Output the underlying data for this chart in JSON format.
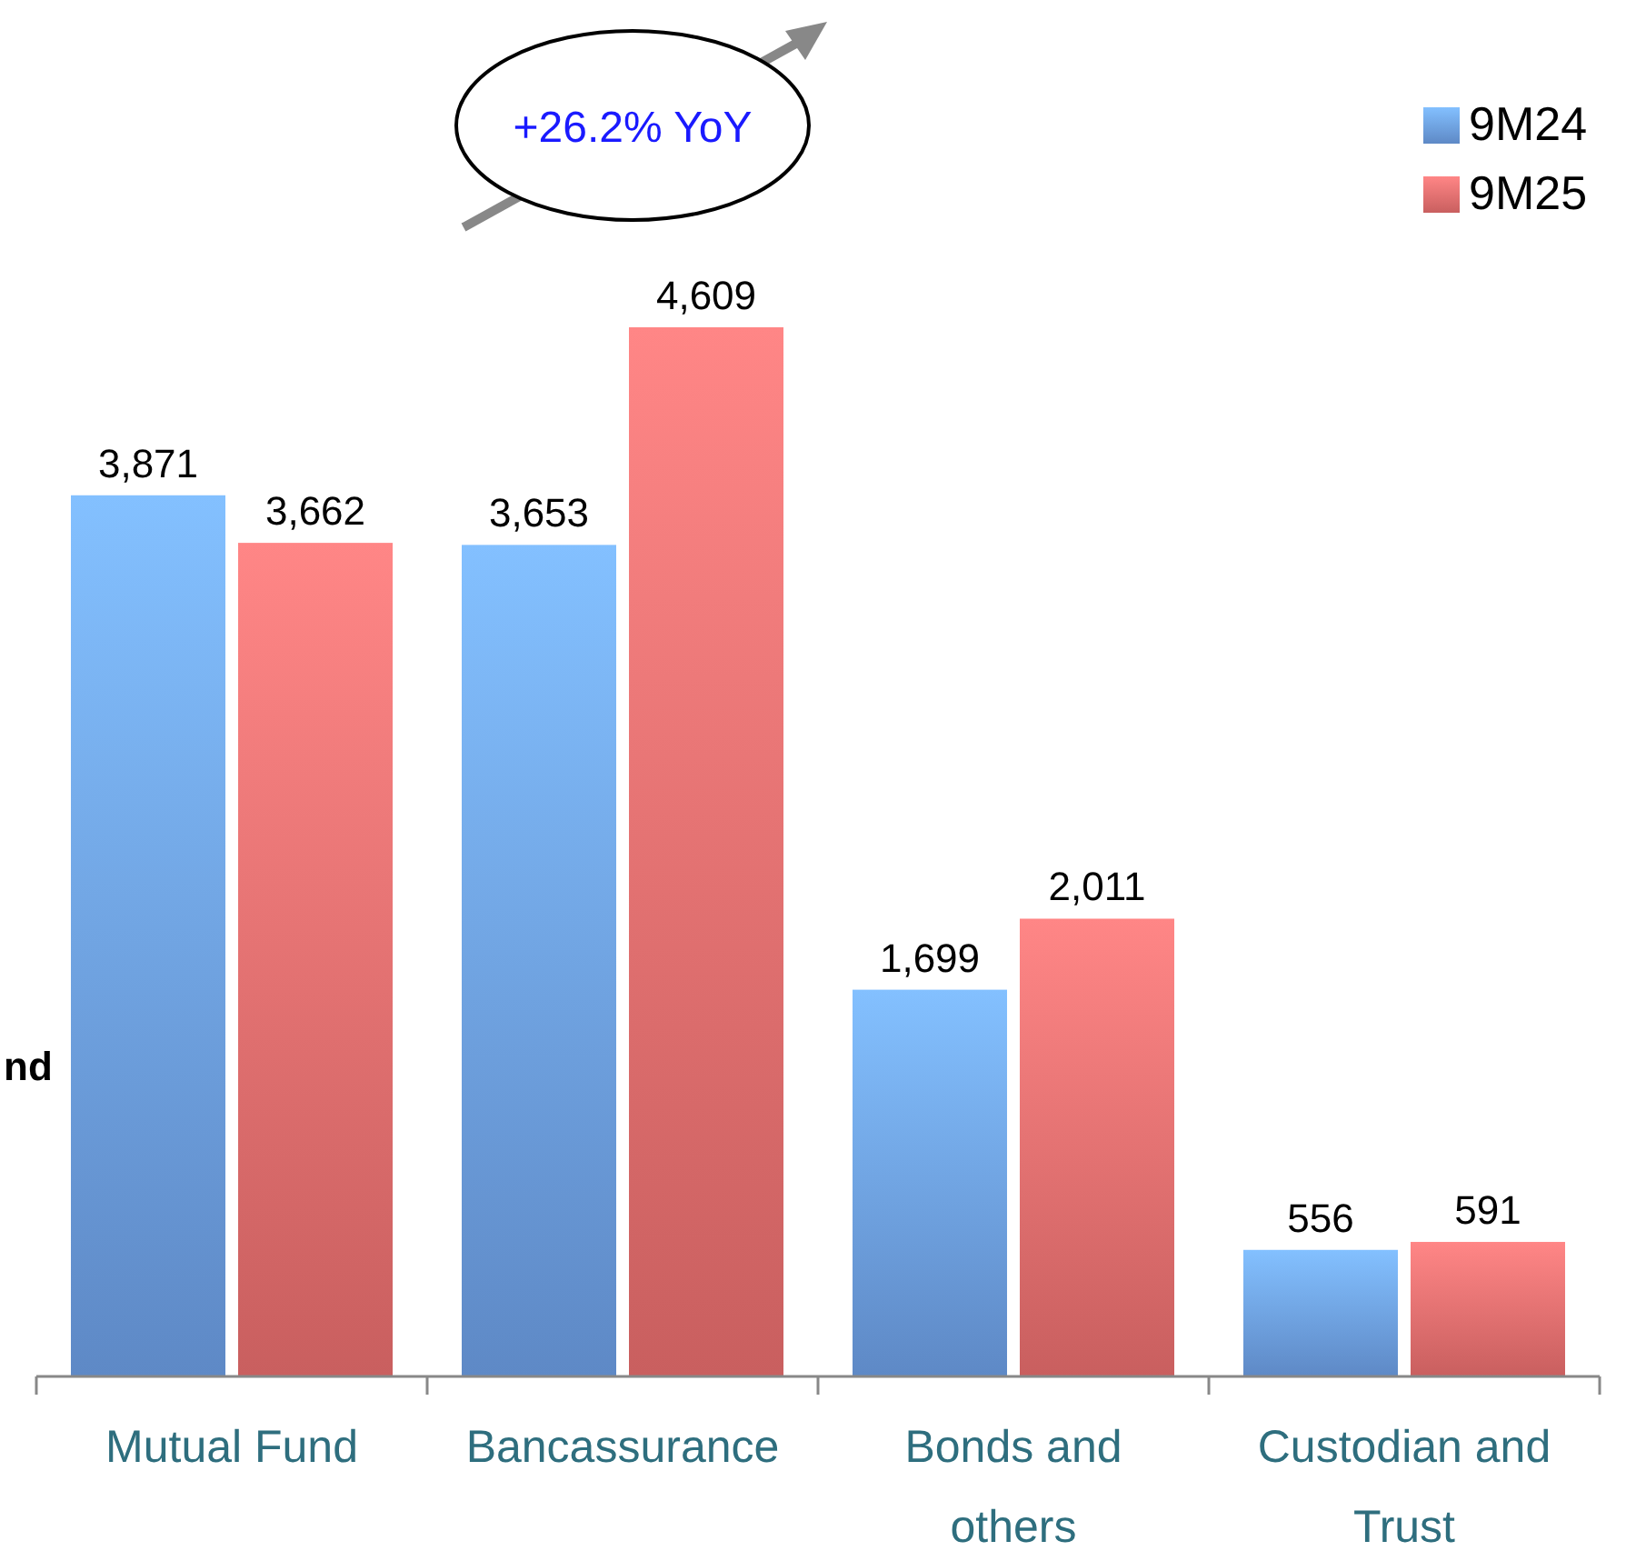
{
  "chart_data": {
    "type": "bar",
    "categories": [
      "Mutual Fund",
      "Bancassurance",
      "Bonds and others",
      "Custodian and Trust"
    ],
    "series": [
      {
        "name": "9M24",
        "color": "#6a9be0",
        "values": [
          3871,
          3653,
          1699,
          556
        ],
        "value_labels": [
          "3,871",
          "3,653",
          "1,699",
          "556"
        ]
      },
      {
        "name": "9M25",
        "color": "#e46c6c",
        "values": [
          3662,
          4609,
          2011,
          591
        ],
        "value_labels": [
          "3,662",
          "4,609",
          "2,011",
          "591"
        ]
      }
    ],
    "legend": "top right",
    "annotations": [
      "+26.2% YoY",
      "nd"
    ]
  }
}
